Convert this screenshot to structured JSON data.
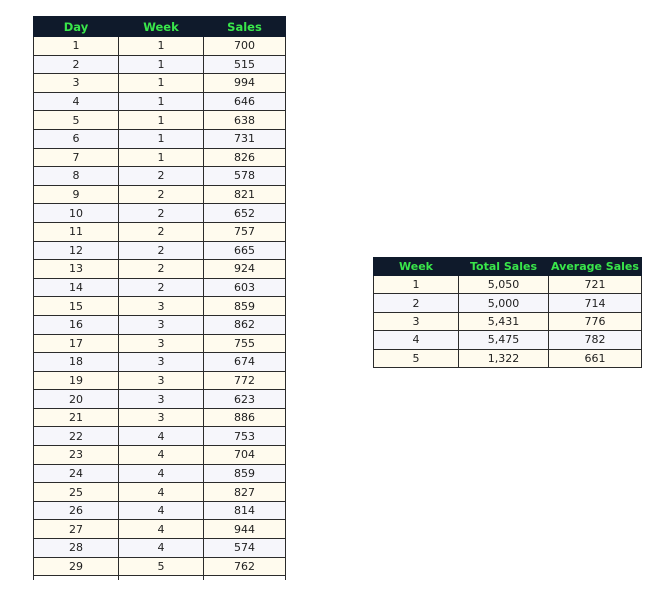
{
  "daily_table": {
    "headers": [
      "Day",
      "Week",
      "Sales"
    ],
    "rows": [
      [
        "1",
        "1",
        "700"
      ],
      [
        "2",
        "1",
        "515"
      ],
      [
        "3",
        "1",
        "994"
      ],
      [
        "4",
        "1",
        "646"
      ],
      [
        "5",
        "1",
        "638"
      ],
      [
        "6",
        "1",
        "731"
      ],
      [
        "7",
        "1",
        "826"
      ],
      [
        "8",
        "2",
        "578"
      ],
      [
        "9",
        "2",
        "821"
      ],
      [
        "10",
        "2",
        "652"
      ],
      [
        "11",
        "2",
        "757"
      ],
      [
        "12",
        "2",
        "665"
      ],
      [
        "13",
        "2",
        "924"
      ],
      [
        "14",
        "2",
        "603"
      ],
      [
        "15",
        "3",
        "859"
      ],
      [
        "16",
        "3",
        "862"
      ],
      [
        "17",
        "3",
        "755"
      ],
      [
        "18",
        "3",
        "674"
      ],
      [
        "19",
        "3",
        "772"
      ],
      [
        "20",
        "3",
        "623"
      ],
      [
        "21",
        "3",
        "886"
      ],
      [
        "22",
        "4",
        "753"
      ],
      [
        "23",
        "4",
        "704"
      ],
      [
        "24",
        "4",
        "859"
      ],
      [
        "25",
        "4",
        "827"
      ],
      [
        "26",
        "4",
        "814"
      ],
      [
        "27",
        "4",
        "944"
      ],
      [
        "28",
        "4",
        "574"
      ],
      [
        "29",
        "5",
        "762"
      ]
    ]
  },
  "weekly_table": {
    "headers": [
      "Week",
      "Total Sales",
      "Average Sales"
    ],
    "rows": [
      [
        "1",
        "5,050",
        "721"
      ],
      [
        "2",
        "5,000",
        "714"
      ],
      [
        "3",
        "5,431",
        "776"
      ],
      [
        "4",
        "5,475",
        "782"
      ],
      [
        "5",
        "1,322",
        "661"
      ]
    ]
  },
  "colors": {
    "header_bg": "#0f1a2b",
    "header_text": "#39e64a",
    "row_odd": "#fffbee",
    "row_even": "#f6f6fb"
  }
}
